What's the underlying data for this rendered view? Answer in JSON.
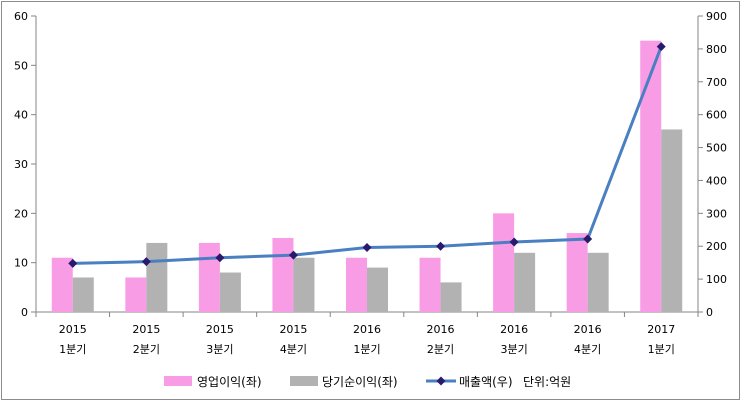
{
  "chart_data": {
    "type": "bar",
    "categories": [
      [
        "2015",
        "1분기"
      ],
      [
        "2015",
        "2분기"
      ],
      [
        "2015",
        "3분기"
      ],
      [
        "2015",
        "4분기"
      ],
      [
        "2016",
        "1분기"
      ],
      [
        "2016",
        "2분기"
      ],
      [
        "2016",
        "3분기"
      ],
      [
        "2016",
        "4분기"
      ],
      [
        "2017",
        "1분기"
      ]
    ],
    "series": [
      {
        "name": "영업이익(좌)",
        "type": "bar",
        "axis": "left",
        "color": "#f99ce6",
        "values": [
          11,
          7,
          14,
          15,
          11,
          11,
          20,
          16,
          55
        ]
      },
      {
        "name": "당기순이익(좌)",
        "type": "bar",
        "axis": "left",
        "color": "#b2b2b2",
        "values": [
          7,
          14,
          8,
          11,
          9,
          6,
          12,
          12,
          37
        ]
      },
      {
        "name": "매출액(우)",
        "type": "line",
        "axis": "right",
        "color": "#4a7fc1",
        "marker_color": "#2a1a6e",
        "values": [
          148,
          153,
          165,
          173,
          196,
          200,
          213,
          222,
          807
        ]
      }
    ],
    "unit_note": "단위:억원",
    "ylim_left": [
      0,
      60
    ],
    "yticks_left": [
      0,
      10,
      20,
      30,
      40,
      50,
      60
    ],
    "ylim_right": [
      0,
      900
    ],
    "yticks_right": [
      0,
      100,
      200,
      300,
      400,
      500,
      600,
      700,
      800,
      900
    ],
    "grid": false,
    "legend_position": "bottom"
  }
}
